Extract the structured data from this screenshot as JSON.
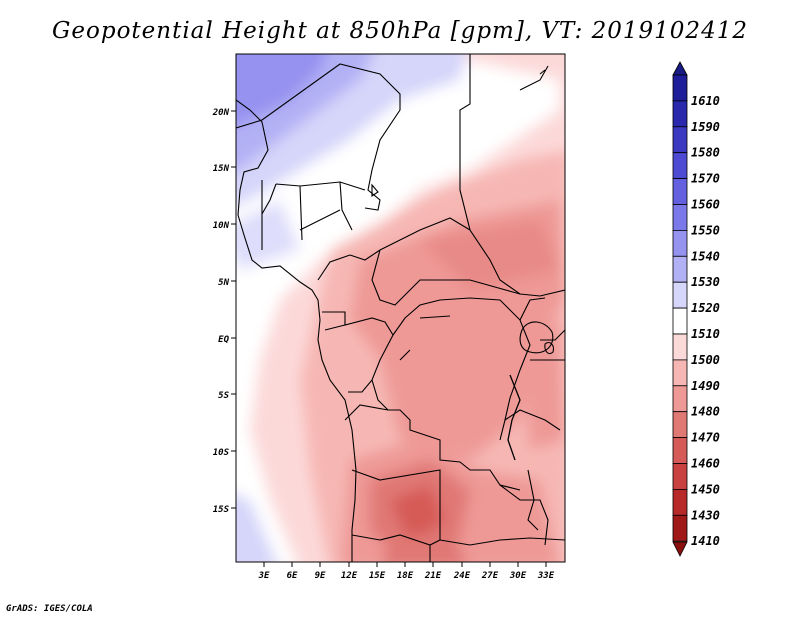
{
  "title": "Geopotential Height at 850hPa [gpm], VT: 2019102412",
  "footer": "GrADS: IGES/COLA",
  "map": {
    "lon_range": [
      0,
      35
    ],
    "lat_range": [
      -20,
      25
    ],
    "lon_ticks": [
      "3E",
      "6E",
      "9E",
      "12E",
      "15E",
      "18E",
      "21E",
      "24E",
      "27E",
      "30E",
      "33E"
    ],
    "lat_ticks": [
      "20N",
      "15N",
      "10N",
      "5N",
      "EQ",
      "5S",
      "10S",
      "15S"
    ]
  },
  "colorbar": {
    "levels": [
      "1610",
      "1590",
      "1580",
      "1570",
      "1560",
      "1550",
      "1540",
      "1530",
      "1520",
      "1510",
      "1500",
      "1490",
      "1480",
      "1470",
      "1460",
      "1450",
      "1430",
      "1410"
    ],
    "colors": [
      "#1f1e9a",
      "#2a28ad",
      "#3b39c2",
      "#4d4bd3",
      "#6461e0",
      "#7b78ea",
      "#9592f0",
      "#b3b1f5",
      "#d6d5fa",
      "#ffffff",
      "#fcd9d9",
      "#f6b7b4",
      "#ee9996",
      "#e07874",
      "#d65a57",
      "#c94140",
      "#b82a2a",
      "#a01818"
    ],
    "top_color": "#1a1a86",
    "bottom_color": "#8a1010"
  }
}
